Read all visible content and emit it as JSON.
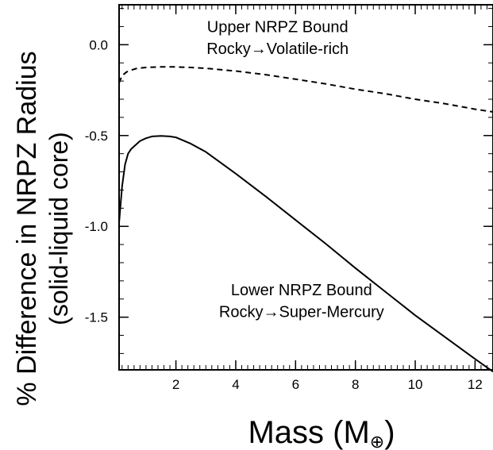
{
  "chart_data": {
    "type": "line",
    "xlabel": "Mass (M",
    "xlabel_sub": "⊕",
    "xlabel_close": ")",
    "ylabel_line1": "% Difference in NRPZ Radius",
    "ylabel_line2": "(solid-liquid core)",
    "xlim": [
      0.1,
      12.6
    ],
    "ylim": [
      -1.79,
      0.22
    ],
    "x_major_ticks": [
      2,
      4,
      6,
      8,
      10,
      12
    ],
    "x_tick_labels": [
      "2",
      "4",
      "6",
      "8",
      "10",
      "12"
    ],
    "x_minor_step": 0.2,
    "y_major_ticks": [
      0.0,
      -0.5,
      -1.0,
      -1.5
    ],
    "y_tick_labels": [
      "0.0",
      "-0.5",
      "-1.0",
      "-1.5"
    ],
    "y_minor_step": 0.1,
    "grid": false,
    "series": [
      {
        "style": "dashed",
        "color": "#000000",
        "x": [
          0.1,
          0.2,
          0.35,
          0.5,
          0.7,
          1.0,
          1.5,
          2.0,
          2.5,
          3.0,
          4.0,
          5.0,
          6.0,
          7.0,
          8.0,
          9.0,
          10.0,
          11.0,
          12.0,
          12.6
        ],
        "y": [
          -0.21,
          -0.17,
          -0.15,
          -0.14,
          -0.13,
          -0.125,
          -0.122,
          -0.122,
          -0.125,
          -0.13,
          -0.145,
          -0.165,
          -0.19,
          -0.215,
          -0.245,
          -0.27,
          -0.3,
          -0.325,
          -0.355,
          -0.37
        ]
      },
      {
        "style": "solid",
        "color": "#000000",
        "x": [
          0.1,
          0.15,
          0.2,
          0.3,
          0.4,
          0.5,
          0.6,
          0.8,
          1.0,
          1.2,
          1.5,
          1.8,
          2.0,
          2.5,
          3.0,
          4.0,
          5.0,
          6.0,
          7.0,
          8.0,
          9.0,
          10.0,
          11.0,
          12.0,
          12.6
        ],
        "y": [
          -0.98,
          -0.88,
          -0.78,
          -0.66,
          -0.6,
          -0.575,
          -0.56,
          -0.53,
          -0.515,
          -0.505,
          -0.502,
          -0.505,
          -0.51,
          -0.545,
          -0.59,
          -0.71,
          -0.835,
          -0.965,
          -1.095,
          -1.23,
          -1.36,
          -1.49,
          -1.61,
          -1.73,
          -1.8
        ]
      }
    ],
    "annotations": [
      {
        "line1": "Upper NRPZ Bound",
        "line2": "Rocky→Volatile-rich",
        "x": 5.4,
        "y1": 0.07,
        "y2": -0.05
      },
      {
        "line1": "Lower NRPZ Bound",
        "line2": "Rocky→Super-Mercury",
        "x": 6.2,
        "y1": -1.38,
        "y2": -1.5
      }
    ]
  }
}
